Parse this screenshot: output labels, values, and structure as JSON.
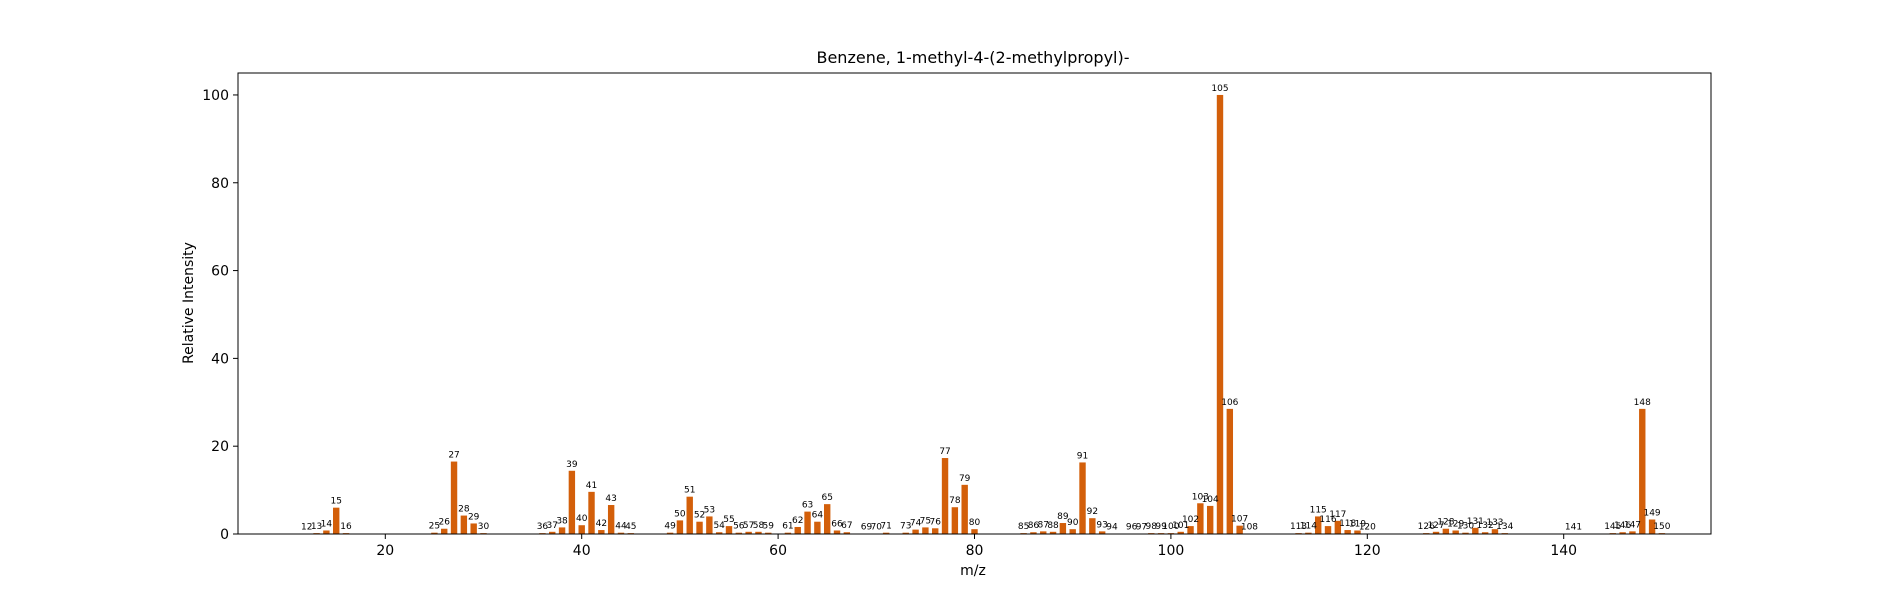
{
  "chart_data": {
    "type": "bar",
    "title": "Benzene, 1-methyl-4-(2-methylpropyl)-",
    "xlabel": "m/z",
    "ylabel": "Relative Intensity",
    "xlim": [
      5,
      155
    ],
    "ylim": [
      0,
      105
    ],
    "xticks": [
      20,
      40,
      60,
      80,
      100,
      120,
      140
    ],
    "yticks": [
      0,
      20,
      40,
      60,
      80,
      100
    ],
    "bar_color": "#d35f0a",
    "grid": false,
    "peaks": [
      {
        "mz": 12,
        "intensity": 0.1
      },
      {
        "mz": 13,
        "intensity": 0.2
      },
      {
        "mz": 14,
        "intensity": 0.8
      },
      {
        "mz": 15,
        "intensity": 6.0
      },
      {
        "mz": 16,
        "intensity": 0.2
      },
      {
        "mz": 25,
        "intensity": 0.3
      },
      {
        "mz": 26,
        "intensity": 1.2
      },
      {
        "mz": 27,
        "intensity": 16.5
      },
      {
        "mz": 28,
        "intensity": 4.2
      },
      {
        "mz": 29,
        "intensity": 2.4
      },
      {
        "mz": 30,
        "intensity": 0.2
      },
      {
        "mz": 36,
        "intensity": 0.2
      },
      {
        "mz": 37,
        "intensity": 0.5
      },
      {
        "mz": 38,
        "intensity": 1.5
      },
      {
        "mz": 39,
        "intensity": 14.4
      },
      {
        "mz": 40,
        "intensity": 2.0
      },
      {
        "mz": 41,
        "intensity": 9.6
      },
      {
        "mz": 42,
        "intensity": 0.9
      },
      {
        "mz": 43,
        "intensity": 6.6
      },
      {
        "mz": 44,
        "intensity": 0.3
      },
      {
        "mz": 45,
        "intensity": 0.2
      },
      {
        "mz": 49,
        "intensity": 0.3
      },
      {
        "mz": 50,
        "intensity": 3.1
      },
      {
        "mz": 51,
        "intensity": 8.5
      },
      {
        "mz": 52,
        "intensity": 2.8
      },
      {
        "mz": 53,
        "intensity": 4.0
      },
      {
        "mz": 54,
        "intensity": 0.4
      },
      {
        "mz": 55,
        "intensity": 1.8
      },
      {
        "mz": 56,
        "intensity": 0.3
      },
      {
        "mz": 57,
        "intensity": 0.5
      },
      {
        "mz": 58,
        "intensity": 0.5
      },
      {
        "mz": 59,
        "intensity": 0.3
      },
      {
        "mz": 61,
        "intensity": 0.3
      },
      {
        "mz": 62,
        "intensity": 1.6
      },
      {
        "mz": 63,
        "intensity": 5.1
      },
      {
        "mz": 64,
        "intensity": 2.8
      },
      {
        "mz": 65,
        "intensity": 6.8
      },
      {
        "mz": 66,
        "intensity": 0.8
      },
      {
        "mz": 67,
        "intensity": 0.4
      },
      {
        "mz": 69,
        "intensity": 0.1
      },
      {
        "mz": 70,
        "intensity": 0.1
      },
      {
        "mz": 71,
        "intensity": 0.3
      },
      {
        "mz": 73,
        "intensity": 0.3
      },
      {
        "mz": 74,
        "intensity": 1.0
      },
      {
        "mz": 75,
        "intensity": 1.5
      },
      {
        "mz": 76,
        "intensity": 1.3
      },
      {
        "mz": 77,
        "intensity": 17.3
      },
      {
        "mz": 78,
        "intensity": 6.1
      },
      {
        "mz": 79,
        "intensity": 11.2
      },
      {
        "mz": 80,
        "intensity": 1.1
      },
      {
        "mz": 85,
        "intensity": 0.2
      },
      {
        "mz": 86,
        "intensity": 0.4
      },
      {
        "mz": 87,
        "intensity": 0.6
      },
      {
        "mz": 88,
        "intensity": 0.5
      },
      {
        "mz": 89,
        "intensity": 2.5
      },
      {
        "mz": 90,
        "intensity": 1.1
      },
      {
        "mz": 91,
        "intensity": 16.3
      },
      {
        "mz": 92,
        "intensity": 3.6
      },
      {
        "mz": 93,
        "intensity": 0.6
      },
      {
        "mz": 94,
        "intensity": 0.1
      },
      {
        "mz": 96,
        "intensity": 0.1
      },
      {
        "mz": 97,
        "intensity": 0.1
      },
      {
        "mz": 98,
        "intensity": 0.2
      },
      {
        "mz": 99,
        "intensity": 0.2
      },
      {
        "mz": 100,
        "intensity": 0.2
      },
      {
        "mz": 101,
        "intensity": 0.5
      },
      {
        "mz": 102,
        "intensity": 1.8
      },
      {
        "mz": 103,
        "intensity": 7.0
      },
      {
        "mz": 104,
        "intensity": 6.4
      },
      {
        "mz": 105,
        "intensity": 100.0
      },
      {
        "mz": 106,
        "intensity": 28.5
      },
      {
        "mz": 107,
        "intensity": 1.9
      },
      {
        "mz": 108,
        "intensity": 0.1
      },
      {
        "mz": 113,
        "intensity": 0.2
      },
      {
        "mz": 114,
        "intensity": 0.3
      },
      {
        "mz": 115,
        "intensity": 4.0
      },
      {
        "mz": 116,
        "intensity": 1.8
      },
      {
        "mz": 117,
        "intensity": 3.0
      },
      {
        "mz": 118,
        "intensity": 0.9
      },
      {
        "mz": 119,
        "intensity": 0.8
      },
      {
        "mz": 120,
        "intensity": 0.1
      },
      {
        "mz": 126,
        "intensity": 0.2
      },
      {
        "mz": 127,
        "intensity": 0.5
      },
      {
        "mz": 128,
        "intensity": 1.2
      },
      {
        "mz": 129,
        "intensity": 0.8
      },
      {
        "mz": 130,
        "intensity": 0.3
      },
      {
        "mz": 131,
        "intensity": 1.4
      },
      {
        "mz": 132,
        "intensity": 0.4
      },
      {
        "mz": 133,
        "intensity": 1.1
      },
      {
        "mz": 134,
        "intensity": 0.2
      },
      {
        "mz": 141,
        "intensity": 0.1
      },
      {
        "mz": 145,
        "intensity": 0.2
      },
      {
        "mz": 146,
        "intensity": 0.4
      },
      {
        "mz": 147,
        "intensity": 0.6
      },
      {
        "mz": 148,
        "intensity": 28.5
      },
      {
        "mz": 149,
        "intensity": 3.3
      },
      {
        "mz": 150,
        "intensity": 0.2
      }
    ]
  }
}
